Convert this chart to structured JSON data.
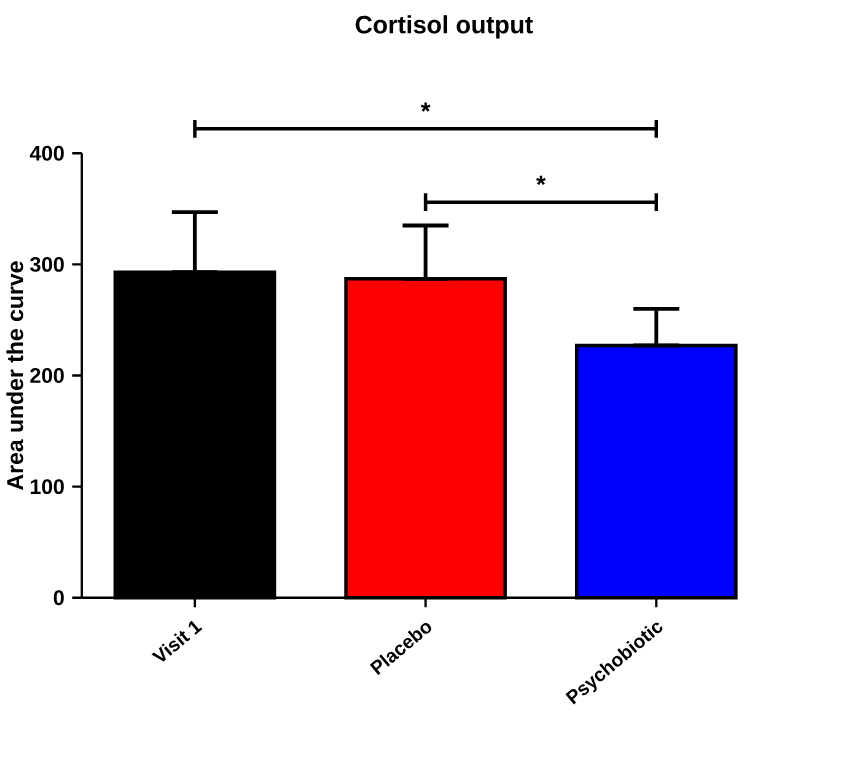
{
  "chart_data": {
    "type": "bar",
    "title": "Cortisol output",
    "ylabel": "Area under the curve",
    "categories": [
      "Visit 1",
      "Placebo",
      "Psychobiotic"
    ],
    "values": [
      293,
      287,
      227
    ],
    "colors": [
      "#000000",
      "#ff0000",
      "#0000ff"
    ],
    "errors": [
      [
        293,
        347
      ],
      [
        287,
        335
      ],
      [
        227,
        260
      ]
    ],
    "ylim": [
      0,
      400
    ],
    "yticks": [
      0,
      100,
      200,
      300,
      400
    ],
    "annotations": [
      "*",
      "*"
    ]
  }
}
